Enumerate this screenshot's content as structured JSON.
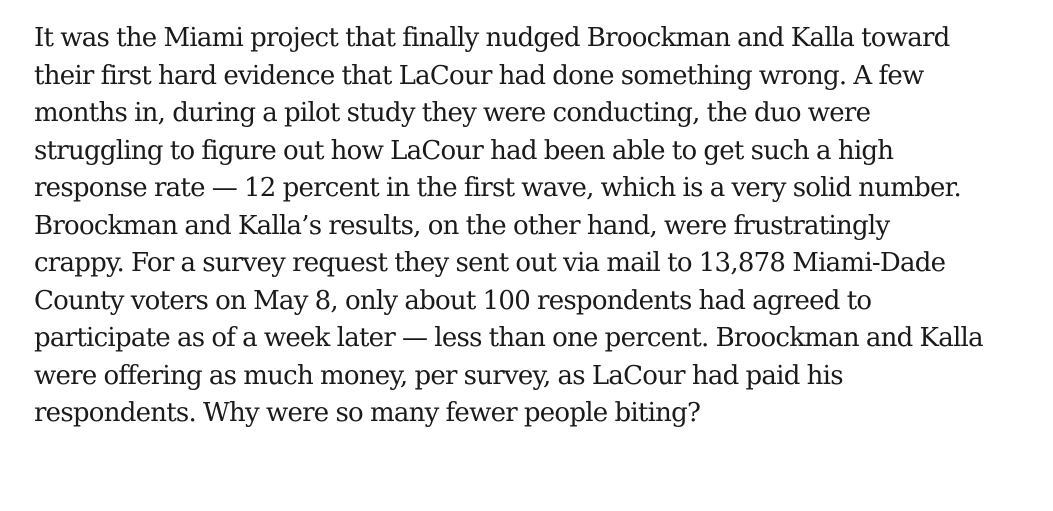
{
  "article": {
    "paragraph_lines": [
      "It was the Miami project that finally nudged Broockman and Kalla toward",
      "their first hard evidence that LaCour had done something wrong. A few",
      "months in, during a pilot study they were conducting, the duo were",
      "struggling to figure out how LaCour had been able to get such a high",
      "response rate — 12 percent in the first wave, which is a very solid number.",
      "Broockman and Kalla’s results, on the other hand, were frustratingly",
      "crappy. For a survey request they sent out via mail to 13,878 Miami-Dade",
      "County voters on May 8, only about 100 respondents had agreed to",
      "participate as of a week later — less than one percent. Broockman and Kalla",
      "were offering as much money, per survey, as LaCour had paid his",
      "respondents. Why were so many fewer people biting?"
    ]
  }
}
